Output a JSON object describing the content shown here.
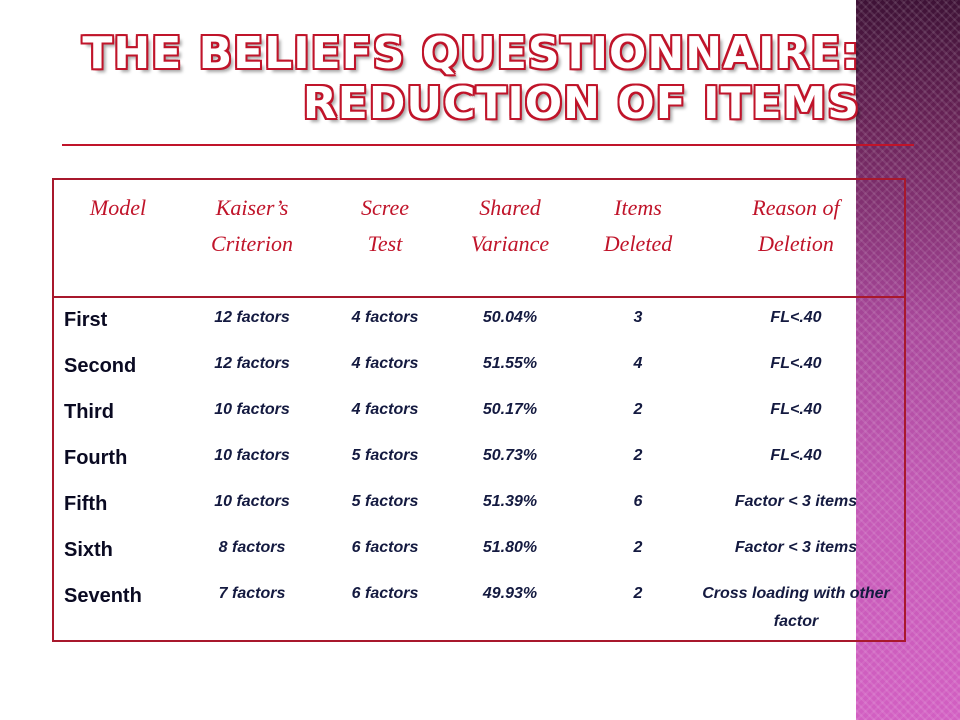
{
  "slide": {
    "title_line1": "THE BELIEFS QUESTIONNAIRE:",
    "title_line2": "REDUCTION OF ITEMS"
  },
  "table": {
    "headers": [
      "Model",
      "Kaiser’s Criterion",
      "Scree Test",
      "Shared Variance",
      "Items Deleted",
      "Reason of Deletion"
    ],
    "rows": [
      {
        "model": "First",
        "kaiser": "12 factors",
        "scree": "4 factors",
        "variance": "50.04%",
        "deleted": "3",
        "reason": "FL<.40"
      },
      {
        "model": "Second",
        "kaiser": "12 factors",
        "scree": "4 factors",
        "variance": "51.55%",
        "deleted": "4",
        "reason": "FL<.40"
      },
      {
        "model": "Third",
        "kaiser": "10 factors",
        "scree": "4 factors",
        "variance": "50.17%",
        "deleted": "2",
        "reason": "FL<.40"
      },
      {
        "model": "Fourth",
        "kaiser": "10 factors",
        "scree": "5 factors",
        "variance": "50.73%",
        "deleted": "2",
        "reason": "FL<.40"
      },
      {
        "model": "Fifth",
        "kaiser": "10 factors",
        "scree": "5 factors",
        "variance": "51.39%",
        "deleted": "6",
        "reason": "Factor < 3 items"
      },
      {
        "model": "Sixth",
        "kaiser": "8 factors",
        "scree": "6 factors",
        "variance": "51.80%",
        "deleted": "2",
        "reason": "Factor < 3 items"
      },
      {
        "model": "Seventh",
        "kaiser": "7 factors",
        "scree": "6 factors",
        "variance": "49.93%",
        "deleted": "2",
        "reason": "Cross loading with other factor"
      }
    ]
  },
  "colors": {
    "title_outline": "#c0142a",
    "header_text": "#c0142a",
    "table_border": "#a8182c",
    "cell_text": "#141a40",
    "side_band": "#b04fa4"
  }
}
